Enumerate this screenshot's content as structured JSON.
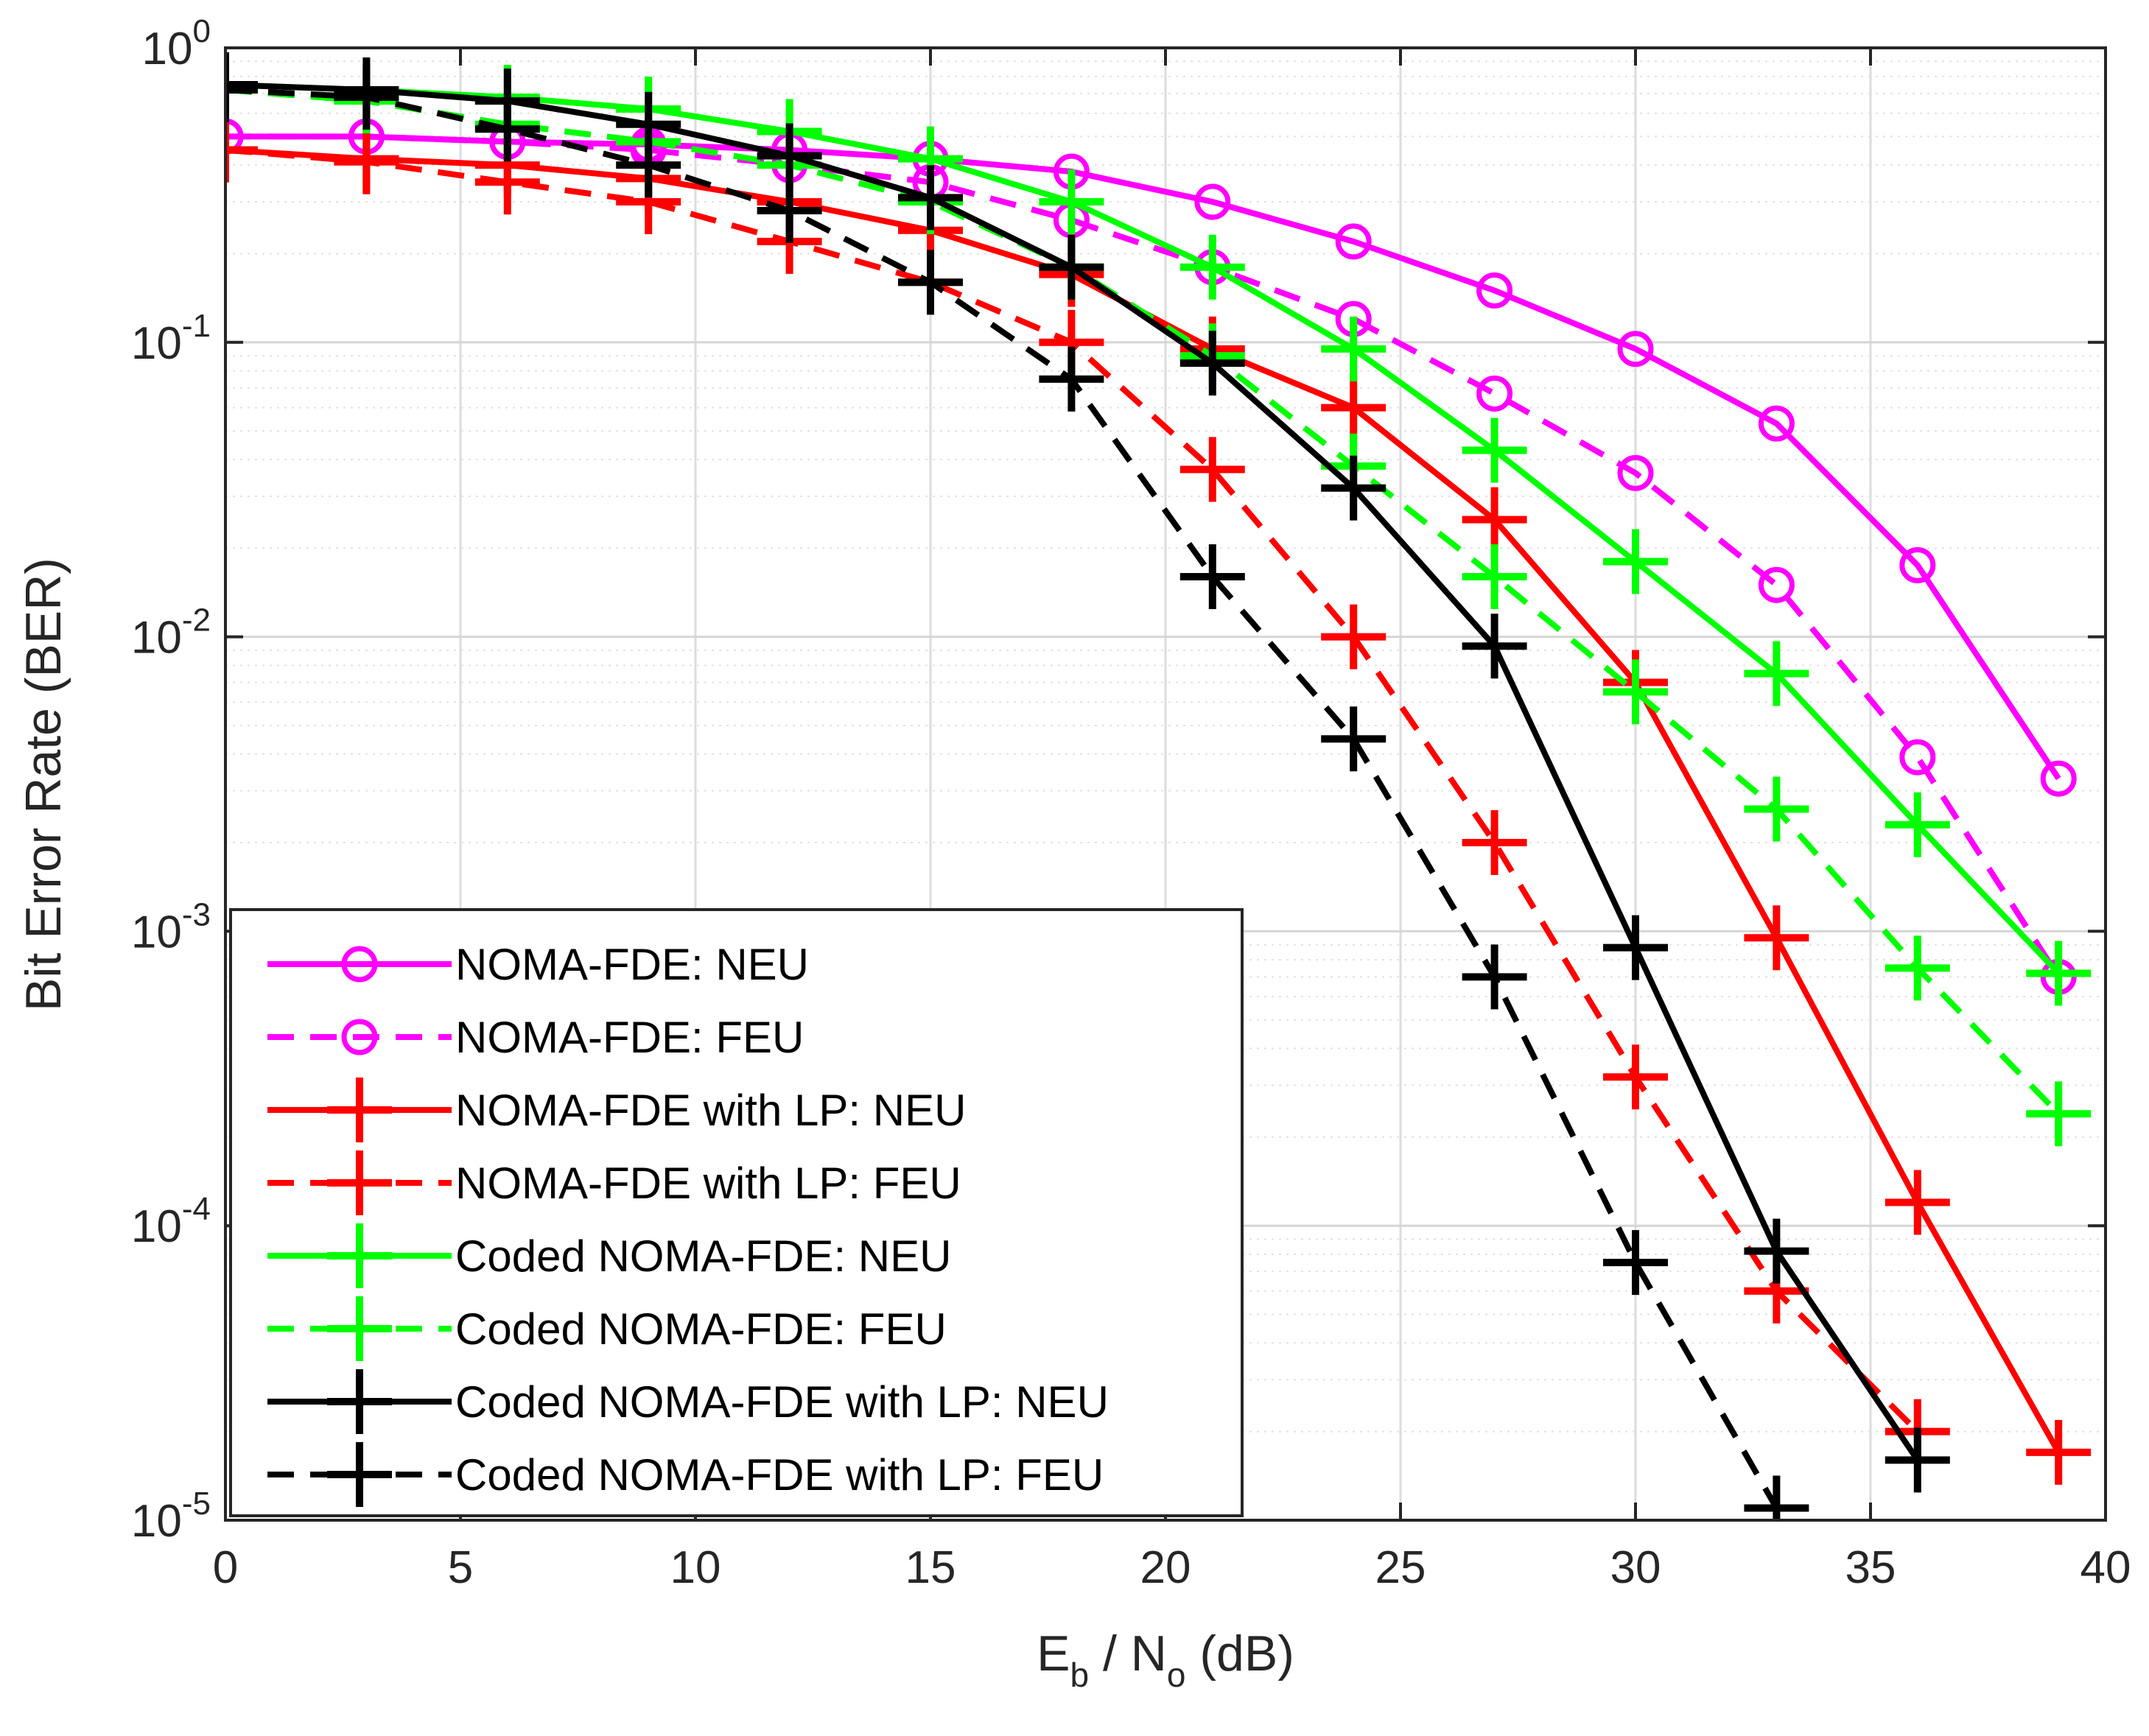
{
  "chart_data": {
    "type": "line",
    "title": "",
    "xlabel": {
      "main": "E",
      "sub1": "b",
      "mid": " / N",
      "sub2": "o",
      "tail": " (dB)"
    },
    "ylabel": "Bit Error Rate (BER)",
    "xlim": [
      0,
      40
    ],
    "ylim": [
      1e-05,
      1
    ],
    "yscale": "log",
    "grid": true,
    "legend_position": "bottom-left",
    "x_ticks": [
      0,
      5,
      10,
      15,
      20,
      25,
      30,
      35,
      40
    ],
    "y_ticks": [
      {
        "value": 1,
        "base": "10",
        "exp": "0"
      },
      {
        "value": 0.1,
        "base": "10",
        "exp": "-1"
      },
      {
        "value": 0.01,
        "base": "10",
        "exp": "-2"
      },
      {
        "value": 0.001,
        "base": "10",
        "exp": "-3"
      },
      {
        "value": 0.0001,
        "base": "10",
        "exp": "-4"
      },
      {
        "value": 1e-05,
        "base": "10",
        "exp": "-5"
      }
    ],
    "series": [
      {
        "name": "NOMA-FDE: NEU",
        "color": "#ff00ff",
        "dash": "solid",
        "marker": "circle",
        "x": [
          0,
          3,
          6,
          9,
          12,
          15,
          18,
          21,
          24,
          27,
          30,
          33,
          36,
          39
        ],
        "y": [
          0.5,
          0.5,
          0.48,
          0.47,
          0.45,
          0.42,
          0.38,
          0.3,
          0.22,
          0.15,
          0.095,
          0.053,
          0.0175,
          0.0033
        ]
      },
      {
        "name": "NOMA-FDE: FEU",
        "color": "#ff00ff",
        "dash": "dashed",
        "marker": "circle",
        "x": [
          0,
          3,
          6,
          9,
          12,
          15,
          18,
          21,
          24,
          27,
          30,
          33,
          36,
          39
        ],
        "y": [
          0.5,
          0.5,
          0.48,
          0.45,
          0.4,
          0.35,
          0.26,
          0.18,
          0.12,
          0.067,
          0.036,
          0.015,
          0.0039,
          0.0007
        ]
      },
      {
        "name": "NOMA-FDE with LP: NEU",
        "color": "#ff0000",
        "dash": "solid",
        "marker": "plus",
        "x": [
          0,
          3,
          6,
          9,
          12,
          15,
          18,
          21,
          24,
          27,
          30,
          33,
          36,
          39
        ],
        "y": [
          0.45,
          0.42,
          0.4,
          0.36,
          0.3,
          0.24,
          0.17,
          0.095,
          0.06,
          0.025,
          0.007,
          0.00095,
          0.00012,
          1.7e-05
        ]
      },
      {
        "name": "NOMA-FDE with LP: FEU",
        "color": "#ff0000",
        "dash": "dashed",
        "marker": "plus",
        "x": [
          0,
          3,
          6,
          9,
          12,
          15,
          18,
          21,
          24,
          27,
          30,
          33,
          36
        ],
        "y": [
          0.45,
          0.41,
          0.35,
          0.3,
          0.22,
          0.16,
          0.1,
          0.037,
          0.01,
          0.002,
          0.00032,
          6e-05,
          2e-05
        ]
      },
      {
        "name": "Coded NOMA-FDE: NEU",
        "color": "#00ff00",
        "dash": "solid",
        "marker": "plus",
        "x": [
          0,
          3,
          6,
          9,
          12,
          15,
          18,
          21,
          24,
          27,
          30,
          33,
          36,
          39
        ],
        "y": [
          0.75,
          0.72,
          0.68,
          0.62,
          0.52,
          0.42,
          0.3,
          0.18,
          0.095,
          0.043,
          0.018,
          0.0075,
          0.0023,
          0.00072
        ]
      },
      {
        "name": "Coded NOMA-FDE: FEU",
        "color": "#00ff00",
        "dash": "dashed",
        "marker": "plus",
        "x": [
          0,
          3,
          6,
          9,
          12,
          15,
          18,
          21,
          24,
          27,
          30,
          33,
          36,
          39
        ],
        "y": [
          0.72,
          0.66,
          0.55,
          0.48,
          0.4,
          0.3,
          0.18,
          0.09,
          0.038,
          0.016,
          0.0065,
          0.0026,
          0.00075,
          0.00024
        ]
      },
      {
        "name": "Coded NOMA-FDE with LP: NEU",
        "color": "#000000",
        "dash": "solid",
        "marker": "plus",
        "x": [
          0,
          3,
          6,
          9,
          12,
          15,
          18,
          21,
          24,
          27,
          30,
          33,
          36
        ],
        "y": [
          0.75,
          0.72,
          0.66,
          0.55,
          0.43,
          0.31,
          0.18,
          0.085,
          0.032,
          0.0093,
          0.00088,
          8.2e-05,
          1.6e-05
        ]
      },
      {
        "name": "Coded NOMA-FDE with LP: FEU",
        "color": "#000000",
        "dash": "dashed",
        "marker": "plus",
        "x": [
          0,
          3,
          6,
          9,
          12,
          15,
          18,
          21,
          24,
          27,
          30,
          33
        ],
        "y": [
          0.72,
          0.68,
          0.53,
          0.4,
          0.28,
          0.16,
          0.075,
          0.016,
          0.0045,
          0.0007,
          7.5e-05,
          1.1e-05
        ]
      }
    ]
  }
}
